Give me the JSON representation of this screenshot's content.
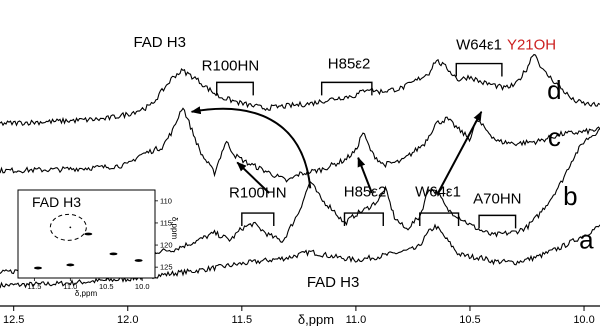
{
  "chart_data": {
    "type": "line",
    "title": "",
    "xlabel": "δ,ppm",
    "x_reversed": true,
    "xlim": [
      12.56,
      9.93
    ],
    "x_ticks": [
      "12.5",
      "12.0",
      "11.5",
      "11.0",
      "10.5",
      "10.0"
    ],
    "x_tick_values": [
      12.5,
      12.0,
      11.5,
      11.0,
      10.5,
      10.0
    ],
    "series": [
      {
        "name": "a",
        "points": [
          [
            12.56,
            1.75
          ],
          [
            12.3,
            1.9
          ],
          [
            12.0,
            2.3
          ],
          [
            11.7,
            3.0
          ],
          [
            11.5,
            3.6
          ],
          [
            11.3,
            4.1
          ],
          [
            11.2,
            4.6
          ],
          [
            11.1,
            4.2
          ],
          [
            11.0,
            3.9
          ],
          [
            10.9,
            4.2
          ],
          [
            10.8,
            4.6
          ],
          [
            10.73,
            4.9
          ],
          [
            10.68,
            6.3
          ],
          [
            10.65,
            6.8
          ],
          [
            10.6,
            5.6
          ],
          [
            10.55,
            4.4
          ],
          [
            10.5,
            4.2
          ],
          [
            10.45,
            4.1
          ],
          [
            10.4,
            3.8
          ],
          [
            10.3,
            3.7
          ],
          [
            10.2,
            4.2
          ],
          [
            10.1,
            5.0
          ],
          [
            10.0,
            6.0
          ],
          [
            9.93,
            6.8
          ]
        ]
      },
      {
        "name": "b",
        "points": [
          [
            12.56,
            2.8
          ],
          [
            12.3,
            3.5
          ],
          [
            12.0,
            4.3
          ],
          [
            11.8,
            4.8
          ],
          [
            11.7,
            5.5
          ],
          [
            11.62,
            6.2
          ],
          [
            11.55,
            5.6
          ],
          [
            11.5,
            6.6
          ],
          [
            11.45,
            7.0
          ],
          [
            11.38,
            6.0
          ],
          [
            11.32,
            5.5
          ],
          [
            11.25,
            8.0
          ],
          [
            11.2,
            10.6
          ],
          [
            11.15,
            9.0
          ],
          [
            11.1,
            8.2
          ],
          [
            11.05,
            7.0
          ],
          [
            11.0,
            7.8
          ],
          [
            10.95,
            8.3
          ],
          [
            10.9,
            9.0
          ],
          [
            10.87,
            9.9
          ],
          [
            10.83,
            7.5
          ],
          [
            10.78,
            6.5
          ],
          [
            10.72,
            7.6
          ],
          [
            10.68,
            10.0
          ],
          [
            10.64,
            9.6
          ],
          [
            10.6,
            8.2
          ],
          [
            10.55,
            7.6
          ],
          [
            10.5,
            6.9
          ],
          [
            10.45,
            6.4
          ],
          [
            10.4,
            6.0
          ],
          [
            10.3,
            6.3
          ],
          [
            10.25,
            6.7
          ],
          [
            10.2,
            7.7
          ],
          [
            10.15,
            9.0
          ],
          [
            10.1,
            10.5
          ],
          [
            10.05,
            12.5
          ],
          [
            10.0,
            14.0
          ],
          [
            9.93,
            15.0
          ]
        ]
      },
      {
        "name": "c",
        "points": [
          [
            12.56,
            11.5
          ],
          [
            12.3,
            11.6
          ],
          [
            12.1,
            11.8
          ],
          [
            12.0,
            12.0
          ],
          [
            11.95,
            12.8
          ],
          [
            11.85,
            13.5
          ],
          [
            11.8,
            15.0
          ],
          [
            11.76,
            17.0
          ],
          [
            11.72,
            15.0
          ],
          [
            11.68,
            13.0
          ],
          [
            11.62,
            11.3
          ],
          [
            11.57,
            14.0
          ],
          [
            11.53,
            12.8
          ],
          [
            11.48,
            12.2
          ],
          [
            11.4,
            11.5
          ],
          [
            11.3,
            10.6
          ],
          [
            11.25,
            11.2
          ],
          [
            11.15,
            11.6
          ],
          [
            11.05,
            12.4
          ],
          [
            11.0,
            13.2
          ],
          [
            10.97,
            14.8
          ],
          [
            10.93,
            13.0
          ],
          [
            10.88,
            12.0
          ],
          [
            10.8,
            12.3
          ],
          [
            10.7,
            13.8
          ],
          [
            10.65,
            15.5
          ],
          [
            10.6,
            15.9
          ],
          [
            10.55,
            15.0
          ],
          [
            10.5,
            14.2
          ],
          [
            10.47,
            15.8
          ],
          [
            10.43,
            15.0
          ],
          [
            10.38,
            14.0
          ],
          [
            10.3,
            13.8
          ],
          [
            10.2,
            14.0
          ],
          [
            10.1,
            14.6
          ],
          [
            10.0,
            14.8
          ],
          [
            9.93,
            15.0
          ]
        ]
      },
      {
        "name": "d",
        "points": [
          [
            12.56,
            15.5
          ],
          [
            12.3,
            15.7
          ],
          [
            12.1,
            15.9
          ],
          [
            12.0,
            16.3
          ],
          [
            11.9,
            17.0
          ],
          [
            11.8,
            19.5
          ],
          [
            11.76,
            20.0
          ],
          [
            11.7,
            19.3
          ],
          [
            11.65,
            18.5
          ],
          [
            11.6,
            17.8
          ],
          [
            11.5,
            17.2
          ],
          [
            11.4,
            16.8
          ],
          [
            11.3,
            17.0
          ],
          [
            11.2,
            17.2
          ],
          [
            11.1,
            17.6
          ],
          [
            11.0,
            17.9
          ],
          [
            10.95,
            18.5
          ],
          [
            10.9,
            18.2
          ],
          [
            10.8,
            18.5
          ],
          [
            10.75,
            19.0
          ],
          [
            10.68,
            19.8
          ],
          [
            10.65,
            20.9
          ],
          [
            10.6,
            20.2
          ],
          [
            10.55,
            19.2
          ],
          [
            10.5,
            19.5
          ],
          [
            10.45,
            19.0
          ],
          [
            10.4,
            18.8
          ],
          [
            10.35,
            18.5
          ],
          [
            10.3,
            18.8
          ],
          [
            10.25,
            20.2
          ],
          [
            10.22,
            21.6
          ],
          [
            10.18,
            20.0
          ],
          [
            10.1,
            18.5
          ],
          [
            10.05,
            17.5
          ],
          [
            10.0,
            17.2
          ],
          [
            9.93,
            17.0
          ]
        ]
      }
    ],
    "trace_labels": [
      {
        "text": "a",
        "x": 9.99,
        "y": 4.9
      },
      {
        "text": "b",
        "x": 10.06,
        "y": 8.6
      },
      {
        "text": "c",
        "x": 10.13,
        "y": 13.6
      },
      {
        "text": "d",
        "x": 10.13,
        "y": 17.6
      }
    ],
    "annotations": [
      {
        "text": "FAD H3",
        "x": 11.86,
        "y": 22.0,
        "color": "#000000"
      },
      {
        "text": "R100HN",
        "x": 11.55,
        "y": 20.0,
        "color": "#000000"
      },
      {
        "text": "H85ε2",
        "x": 11.03,
        "y": 20.2,
        "color": "#000000"
      },
      {
        "text": "W64ε1",
        "x": 10.46,
        "y": 21.8,
        "color": "#000000"
      },
      {
        "text": "Y21OH",
        "x": 10.23,
        "y": 21.8,
        "color": "#cc1f1f"
      },
      {
        "text": "R100HN",
        "x": 11.43,
        "y": 9.2,
        "color": "#000000"
      },
      {
        "text": "H85ε2",
        "x": 10.96,
        "y": 9.3,
        "color": "#000000"
      },
      {
        "text": "W64ε1",
        "x": 10.64,
        "y": 9.3,
        "color": "#000000"
      },
      {
        "text": "A70HN",
        "x": 10.38,
        "y": 8.7,
        "color": "#000000"
      },
      {
        "text": "FAD H3",
        "x": 11.1,
        "y": 1.6,
        "color": "#000000"
      }
    ],
    "brackets": [
      {
        "x1": 11.61,
        "x2": 11.45,
        "y_top": 19.0,
        "y_bottom": 17.9
      },
      {
        "x1": 11.15,
        "x2": 10.93,
        "y_top": 19.0,
        "y_bottom": 17.9
      },
      {
        "x1": 10.56,
        "x2": 10.36,
        "y_top": 20.6,
        "y_bottom": 19.5
      },
      {
        "x1": 11.5,
        "x2": 11.36,
        "y_top": 7.9,
        "y_bottom": 6.8
      },
      {
        "x1": 11.05,
        "x2": 10.88,
        "y_top": 7.9,
        "y_bottom": 6.8
      },
      {
        "x1": 10.72,
        "x2": 10.55,
        "y_top": 7.9,
        "y_bottom": 6.8
      },
      {
        "x1": 10.46,
        "x2": 10.3,
        "y_top": 7.7,
        "y_bottom": 6.6
      }
    ],
    "arrows": [
      {
        "path": [
          [
            11.2,
            10.0
          ],
          [
            11.23,
            16.0
          ],
          [
            11.46,
            17.4
          ],
          [
            11.72,
            16.5
          ]
        ]
      },
      {
        "path": [
          [
            11.38,
            9.6
          ],
          [
            11.52,
            12.2
          ]
        ]
      },
      {
        "path": [
          [
            10.93,
            9.6
          ],
          [
            10.99,
            12.6
          ]
        ]
      },
      {
        "path": [
          [
            10.64,
            9.6
          ],
          [
            10.45,
            16.5
          ]
        ]
      }
    ],
    "inset": {
      "title": "FAD H3",
      "xlabel": "δ,ppm",
      "ylabel": "δ,ppm",
      "x_ticks": [
        "11.5",
        "11.0",
        "10.5",
        "10.0"
      ],
      "x_tick_values": [
        11.5,
        11.0,
        10.5,
        10.0
      ],
      "y_ticks": [
        "110",
        "115",
        "120",
        "125"
      ],
      "y_tick_values": [
        110,
        115,
        120,
        125
      ],
      "xlim": [
        11.7,
        9.85
      ],
      "ylim": [
        108,
        127
      ],
      "peaks": [
        {
          "x": 11.45,
          "y": 125.2
        },
        {
          "x": 11.0,
          "y": 124.5
        },
        {
          "x": 10.4,
          "y": 122.0
        },
        {
          "x": 10.75,
          "y": 117.5
        },
        {
          "x": 10.05,
          "y": 123.5
        }
      ],
      "circle": {
        "x": 11.0,
        "y": 116.0
      }
    }
  }
}
